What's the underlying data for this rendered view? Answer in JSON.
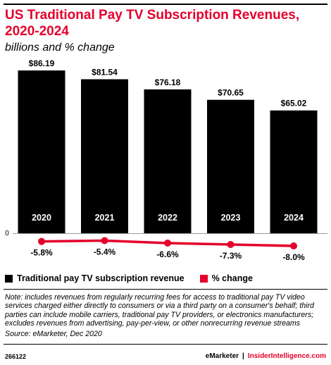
{
  "title": "US Traditional Pay TV Subscription Revenues, 2020-2024",
  "subtitle": "billions and % change",
  "chart_data": {
    "type": "bar",
    "categories": [
      "2020",
      "2021",
      "2022",
      "2023",
      "2024"
    ],
    "series": [
      {
        "name": "Traditional pay TV subscription revenue",
        "type": "bar",
        "values": [
          86.19,
          81.54,
          76.18,
          70.65,
          65.02
        ],
        "labels": [
          "$86.19",
          "$81.54",
          "$76.18",
          "$70.65",
          "$65.02"
        ]
      },
      {
        "name": "% change",
        "type": "line",
        "values": [
          -5.8,
          -5.4,
          -6.6,
          -7.3,
          -8.0
        ],
        "labels": [
          "-5.8%",
          "-5.4%",
          "-6.6%",
          "-7.3%",
          "-8.0%"
        ]
      }
    ],
    "y_axis_label": "0",
    "ylim": [
      0,
      86.19
    ],
    "grid": false,
    "legend_placement": "bottom-left"
  },
  "legend": {
    "items": [
      "Traditional pay TV subscription revenue",
      "% change"
    ]
  },
  "note": "Note: includes revenues from regularly recurring fees for access to traditional pay TV video services charged either directly to consumers or via a third party on a consumer's behalf; third parties can include mobile carriers, traditional pay TV providers, or electronics manufacturers; excludes revenues from advertising, pay-per-view, or other nonrecurring revenue streams",
  "source": "Source: eMarketer, Dec 2020",
  "footer": {
    "id": "266122",
    "brand_left": "eMarketer",
    "separator": "|",
    "brand_right": "InsiderIntelligence.com"
  },
  "colors": {
    "bar": "#000000",
    "line": "#e4002b",
    "title": "#e4002b",
    "bar_label_text": "#ffffff"
  }
}
